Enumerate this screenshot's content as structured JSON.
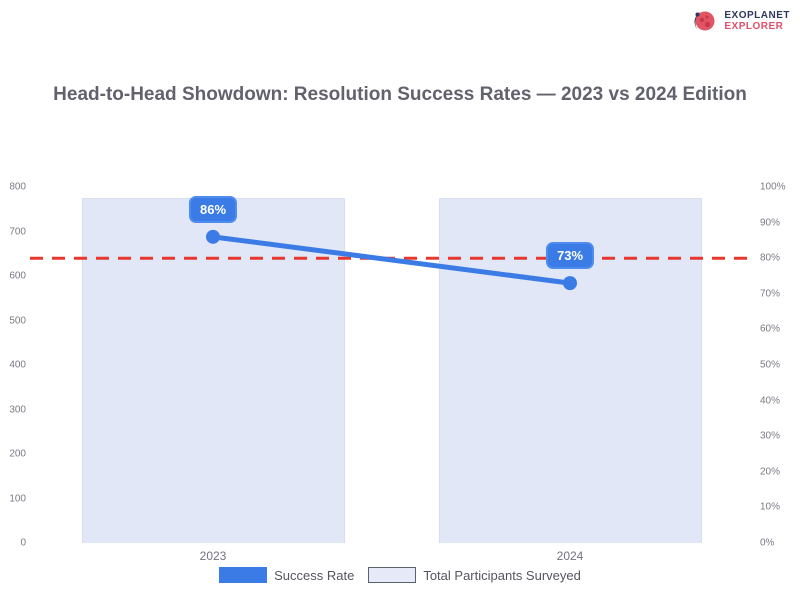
{
  "brand": {
    "line1": "EXOPLANET",
    "line2": "EXPLORER",
    "icon": "planet-orbit-icon",
    "colors": {
      "navy": "#2e3a59",
      "pink": "#e25563"
    }
  },
  "title": "Head-to-Head Showdown: Resolution Success Rates — 2023 vs 2024 Edition",
  "chart_data": {
    "type": "bar",
    "subtype": "combo-bar-line-dual-axis",
    "categories": [
      "2023",
      "2024"
    ],
    "series": [
      {
        "name": "Success Rate",
        "type": "line",
        "axis": "right",
        "values": [
          86,
          73
        ],
        "unit": "%",
        "color": "#3b7be5",
        "point_labels": [
          "86%",
          "73%"
        ]
      },
      {
        "name": "Total Participants Surveyed",
        "type": "bar",
        "axis": "left",
        "values": [
          775,
          775
        ],
        "color": "#e1e7f7"
      }
    ],
    "threshold_line": {
      "value": 80,
      "axis": "right",
      "color": "#e8382e",
      "style": "dashed"
    },
    "left_axis": {
      "min": 0,
      "max": 800,
      "tick_labels": [
        "800",
        "700",
        "600",
        "500",
        "400",
        "300",
        "200",
        "100",
        "0"
      ]
    },
    "right_axis": {
      "min": 0,
      "max": 100,
      "tick_labels": [
        "100%",
        "90%",
        "80%",
        "70%",
        "60%",
        "50%",
        "40%",
        "30%",
        "20%",
        "10%",
        "0%"
      ]
    },
    "grid": false,
    "legend_position": "bottom",
    "title": "Head-to-Head Showdown: Resolution Success Rates — 2023 vs 2024 Edition"
  },
  "legend": {
    "items": [
      {
        "label": "Success Rate",
        "swatch": "solid-blue"
      },
      {
        "label": "Total Participants Surveyed",
        "swatch": "light-lavender-outlined"
      }
    ]
  },
  "colors": {
    "accent_blue": "#3b7be5",
    "bar_fill": "#e1e7f7",
    "threshold_red": "#e8382e",
    "axis_text": "#7a7a85",
    "title_text": "#62626f"
  }
}
